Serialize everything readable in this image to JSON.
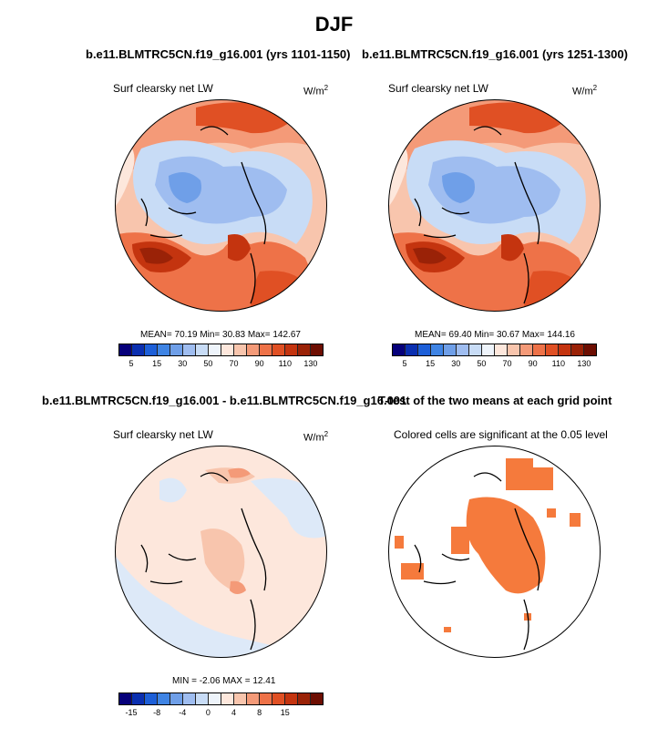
{
  "title": "DJF",
  "panels": [
    {
      "title": "b.e11.BLMTRC5CN.f19_g16.001 (yrs 1101-1150)",
      "left_label": "Surf clearsky net LW",
      "units": "W/m",
      "stats": "MEAN=  70.19  Min=  30.83  Max=  142.67"
    },
    {
      "title": "b.e11.BLMTRC5CN.f19_g16.001 (yrs 1251-1300)",
      "left_label": "Surf clearsky net LW",
      "units": "W/m",
      "stats": "MEAN=  69.40  Min=  30.67  Max=  144.16"
    },
    {
      "title": "b.e11.BLMTRC5CN.f19_g16.001 - b.e11.BLMTRC5CN.f19_g16.001",
      "left_label": "Surf clearsky net LW",
      "units": "W/m",
      "stats": "MIN =  -2.06  MAX =  12.41"
    },
    {
      "title": "T-test of the two means at each grid point",
      "left_label": "Colored cells are significant at the 0.05 level",
      "units": "",
      "stats": ""
    }
  ],
  "units_exponent": "2",
  "chart_data": [
    {
      "type": "polar-contour",
      "title": "b.e11.BLMTRC5CN.f19_g16.001 (yrs 1101-1150)",
      "variable": "Surf clearsky net LW",
      "units": "W/m2",
      "mean": 70.19,
      "min": 30.83,
      "max": 142.67,
      "colorbar_ticks": [
        "5",
        "15",
        "30",
        "50",
        "70",
        "90",
        "110",
        "130"
      ]
    },
    {
      "type": "polar-contour",
      "title": "b.e11.BLMTRC5CN.f19_g16.001 (yrs 1251-1300)",
      "variable": "Surf clearsky net LW",
      "units": "W/m2",
      "mean": 69.4,
      "min": 30.67,
      "max": 144.16,
      "colorbar_ticks": [
        "5",
        "15",
        "30",
        "50",
        "70",
        "90",
        "110",
        "130"
      ]
    },
    {
      "type": "polar-contour",
      "title": "b.e11.BLMTRC5CN.f19_g16.001 - b.e11.BLMTRC5CN.f19_g16.001",
      "variable": "Surf clearsky net LW",
      "units": "W/m2",
      "min": -2.06,
      "max": 12.41,
      "colorbar_ticks": [
        "-15",
        "-8",
        "-4",
        "0",
        "4",
        "8",
        "15"
      ]
    },
    {
      "type": "polar-significance-mask",
      "title": "T-test of the two means at each grid point",
      "annotation": "Colored cells are significant at the 0.05 level",
      "significance_level": 0.05
    }
  ],
  "colorbar_main": [
    "#06007a",
    "#0a2fb0",
    "#1d5fd8",
    "#3f84e4",
    "#6f9fe8",
    "#9fbdf0",
    "#c8dcf6",
    "#eef4fb",
    "#fde7dc",
    "#f8c5ad",
    "#f49a78",
    "#ee7248",
    "#e05024",
    "#c4340f",
    "#9a2207",
    "#6d0e02"
  ],
  "colorbar_diff": [
    "#06007a",
    "#0a2fb0",
    "#1d5fd8",
    "#3f84e4",
    "#6f9fe8",
    "#9fbdf0",
    "#c8dcf6",
    "#eef4fb",
    "#fde7dc",
    "#f8c5ad",
    "#f49a78",
    "#ee7248",
    "#e05024",
    "#c4340f",
    "#9a2207",
    "#6d0e02"
  ],
  "colors": {
    "significance": "#f57a3c"
  }
}
